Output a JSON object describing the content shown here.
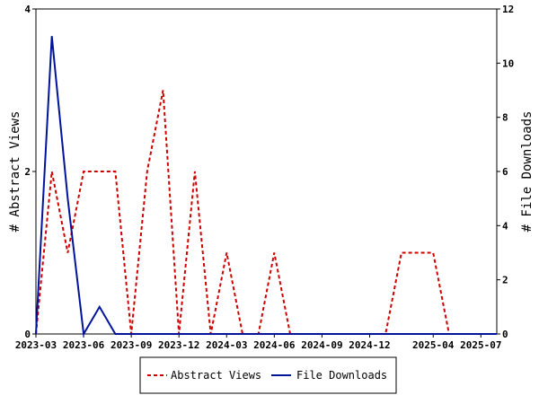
{
  "chart_data": {
    "type": "line",
    "xlabel": "",
    "ylabel_left": "# Abstract Views",
    "ylabel_right": "# File Downloads",
    "x_ticks": [
      "2023-03",
      "2023-06",
      "2023-09",
      "2023-12",
      "2024-03",
      "2024-06",
      "2024-09",
      "2024-12",
      "2025-04",
      "2025-07"
    ],
    "x_range": [
      "2023-03",
      "2025-08"
    ],
    "ylim_left": [
      0,
      4
    ],
    "ylim_right": [
      0,
      12
    ],
    "yticks_left": [
      0,
      2,
      4
    ],
    "yticks_right": [
      0,
      2,
      4,
      6,
      8,
      10,
      12
    ],
    "legend_position": "bottom-center",
    "x": [
      "2023-03",
      "2023-04",
      "2023-05",
      "2023-06",
      "2023-07",
      "2023-08",
      "2023-09",
      "2023-10",
      "2023-11",
      "2023-12",
      "2024-01",
      "2024-02",
      "2024-03",
      "2024-04",
      "2024-05",
      "2024-06",
      "2024-07",
      "2024-08",
      "2024-09",
      "2024-10",
      "2024-11",
      "2024-12",
      "2025-01",
      "2025-02",
      "2025-03",
      "2025-04",
      "2025-05",
      "2025-06",
      "2025-07",
      "2025-08"
    ],
    "series": [
      {
        "name": "Abstract Views",
        "axis": "left",
        "color": "#cc0000",
        "dash": "dashed",
        "values": [
          0,
          2,
          1,
          2,
          2,
          2,
          0,
          2,
          3,
          0,
          2,
          0,
          1,
          0,
          0,
          1,
          0,
          0,
          0,
          0,
          0,
          0,
          0,
          1,
          1,
          1,
          0,
          0,
          0,
          0
        ]
      },
      {
        "name": "File Downloads",
        "axis": "right",
        "color": "#00139a",
        "dash": "solid",
        "values": [
          0,
          11,
          5,
          0,
          1,
          0,
          0,
          0,
          0,
          0,
          0,
          0,
          0,
          0,
          0,
          0,
          0,
          0,
          0,
          0,
          0,
          0,
          0,
          0,
          0,
          0,
          0,
          0,
          0,
          0
        ]
      }
    ]
  }
}
